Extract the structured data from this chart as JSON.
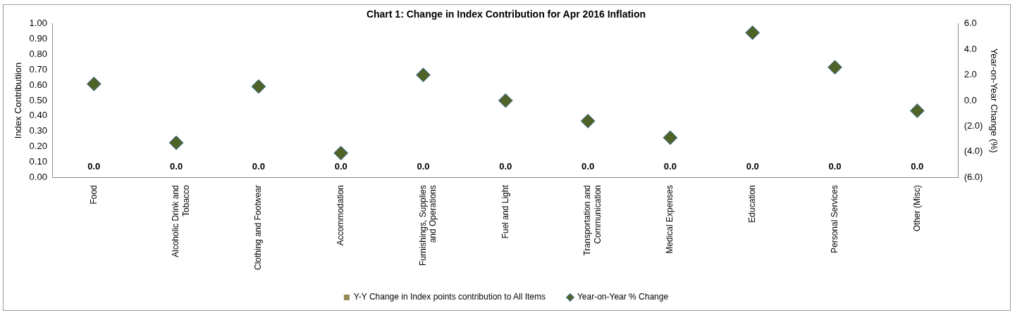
{
  "chart_data": {
    "type": "bar",
    "title": "Chart 1: Change in Index Contribution for Apr 2016 Inflation",
    "ylabel": "Index Contributiion",
    "y2label": "Year-on-Year Change (%)",
    "categories": [
      "Food",
      "Alcoholic Drink and Tobacco",
      "Clothing and Footwear",
      "Accommodation",
      "Furnishings, Supplies and Operations",
      "Fuel and Light",
      "Transportation and Communication",
      "Medical Expenses",
      "Education",
      "Personal Services",
      "Other (Misc)"
    ],
    "series": [
      {
        "name": "Y-Y Change in Index points contribution to All Items",
        "color": "#948a54",
        "values": [
          0,
          0,
          0,
          0,
          0,
          0,
          0,
          0,
          0,
          0,
          0
        ],
        "value_labels": [
          "0.0",
          "0.0",
          "0.0",
          "0.0",
          "0.0",
          "0.0",
          "0.0",
          "0.0",
          "0.0",
          "0.0",
          "0.0"
        ]
      },
      {
        "name": "Year-on-Year % Change",
        "type": "scatter",
        "axis": "y2",
        "color": "#4f6228",
        "values": [
          1.3,
          -3.3,
          1.1,
          -4.1,
          2.0,
          0.0,
          -1.6,
          -2.9,
          5.3,
          2.6,
          -0.8
        ]
      }
    ],
    "ylim": [
      0,
      1
    ],
    "yticks": [
      {
        "value": 0,
        "label": "0.00"
      },
      {
        "value": 0.1,
        "label": "0.10"
      },
      {
        "value": 0.2,
        "label": "0.20"
      },
      {
        "value": 0.3,
        "label": "0.30"
      },
      {
        "value": 0.4,
        "label": "0.40"
      },
      {
        "value": 0.5,
        "label": "0.50"
      },
      {
        "value": 0.6,
        "label": "0.60"
      },
      {
        "value": 0.7,
        "label": "0.70"
      },
      {
        "value": 0.8,
        "label": "0.80"
      },
      {
        "value": 0.9,
        "label": "0.90"
      },
      {
        "value": 1,
        "label": "1.00"
      }
    ],
    "y2lim": [
      -6,
      6
    ],
    "y2ticks": [
      {
        "value": -6,
        "label": "(6.0)"
      },
      {
        "value": -4,
        "label": "(4.0)"
      },
      {
        "value": -2,
        "label": "(2.0)"
      },
      {
        "value": 0,
        "label": "0.0"
      },
      {
        "value": 2,
        "label": "2.0"
      },
      {
        "value": 4,
        "label": "4.0"
      },
      {
        "value": 6,
        "label": "6.0"
      }
    ],
    "legend": "bottom",
    "marker": "diamond",
    "grid": false
  }
}
